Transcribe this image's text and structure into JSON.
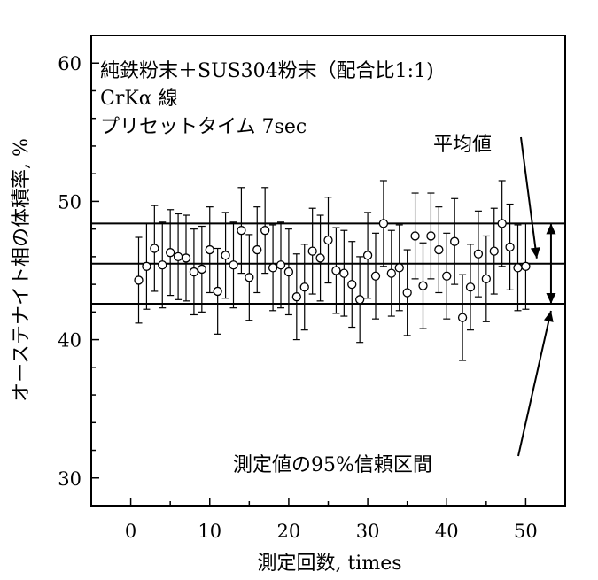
{
  "chart_data": {
    "type": "scatter",
    "title_lines": [
      "純鉄粉末＋SUS304粉末（配合比1:1)",
      "CrKα 線",
      "プリセットタイム 7sec"
    ],
    "xlabel": "測定回数, times",
    "ylabel": "オーステナイト相の体積率, %",
    "xlim": [
      -5,
      55
    ],
    "ylim": [
      28,
      62
    ],
    "xticks": [
      0,
      10,
      20,
      30,
      40,
      50
    ],
    "yticks": [
      30,
      40,
      50,
      60
    ],
    "mean": 45.5,
    "ci_upper": 48.4,
    "ci_lower": 42.6,
    "error_bar": 3.1,
    "x": [
      1,
      2,
      3,
      4,
      5,
      6,
      7,
      8,
      9,
      10,
      11,
      12,
      13,
      14,
      15,
      16,
      17,
      18,
      19,
      20,
      21,
      22,
      23,
      24,
      25,
      26,
      27,
      28,
      29,
      30,
      31,
      32,
      33,
      34,
      35,
      36,
      37,
      38,
      39,
      40,
      41,
      42,
      43,
      44,
      45,
      46,
      47,
      48,
      49,
      50
    ],
    "y": [
      44.3,
      45.3,
      46.6,
      45.4,
      46.3,
      46.0,
      45.9,
      44.9,
      45.1,
      46.5,
      43.5,
      46.1,
      45.4,
      47.9,
      44.5,
      46.5,
      47.9,
      45.2,
      45.4,
      44.9,
      43.1,
      43.8,
      46.4,
      45.9,
      47.2,
      45.0,
      44.8,
      44.0,
      42.9,
      46.1,
      44.6,
      48.4,
      44.8,
      45.2,
      43.4,
      47.5,
      43.9,
      47.5,
      46.5,
      44.6,
      47.1,
      41.6,
      43.8,
      46.2,
      44.4,
      46.4,
      48.4,
      46.7,
      45.2,
      45.3
    ]
  },
  "annotations": {
    "mean_label": "平均値",
    "ci_label": "測定値の95%信頼区間"
  },
  "colors": {
    "line": "#000000",
    "marker_fill": "#ffffff",
    "background": "#ffffff"
  }
}
